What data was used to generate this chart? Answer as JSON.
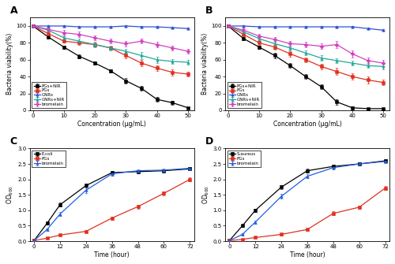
{
  "panel_A": {
    "title": "A",
    "xlabel": "Concentration (μg/mL)",
    "ylabel": "Bacteria viability(%)",
    "xdata": [
      0,
      5,
      10,
      15,
      20,
      25,
      30,
      35,
      40,
      45,
      50
    ],
    "series": {
      "PGs+NIR": {
        "color": "black",
        "marker": "s",
        "y": [
          100,
          87,
          75,
          64,
          56,
          47,
          35,
          26,
          13,
          9,
          3
        ],
        "yerr": [
          1,
          2,
          2,
          2,
          2,
          2,
          3,
          3,
          3,
          2,
          1
        ]
      },
      "PGs": {
        "color": "#e03020",
        "marker": "s",
        "y": [
          100,
          91,
          82,
          80,
          78,
          74,
          65,
          56,
          50,
          45,
          43
        ],
        "yerr": [
          1,
          2,
          2,
          2,
          2,
          2,
          3,
          4,
          3,
          4,
          3
        ]
      },
      "GNRs": {
        "color": "#3050d0",
        "marker": "^",
        "y": [
          100,
          100,
          100,
          99,
          99,
          99,
          100,
          99,
          99,
          98,
          97
        ],
        "yerr": [
          1,
          1,
          1,
          1,
          1,
          1,
          1,
          1,
          1,
          1,
          1
        ]
      },
      "GNRs+NIR": {
        "color": "#20a898",
        "marker": "^",
        "y": [
          100,
          95,
          86,
          82,
          78,
          74,
          70,
          65,
          60,
          58,
          57
        ],
        "yerr": [
          1,
          2,
          2,
          3,
          3,
          3,
          3,
          4,
          4,
          3,
          3
        ]
      },
      "bromelain": {
        "color": "#d040c0",
        "marker": "D",
        "y": [
          100,
          96,
          92,
          90,
          86,
          82,
          79,
          82,
          78,
          74,
          70
        ],
        "yerr": [
          1,
          2,
          3,
          3,
          3,
          3,
          3,
          3,
          3,
          3,
          3
        ]
      }
    },
    "xlim": [
      -1,
      52
    ],
    "ylim": [
      0,
      110
    ],
    "xticks": [
      0,
      10,
      20,
      30,
      40,
      50
    ],
    "yticks": [
      0,
      20,
      40,
      60,
      80,
      100
    ],
    "legend_loc": "lower left"
  },
  "panel_B": {
    "title": "B",
    "xlabel": "Concentration (μg/mL)",
    "ylabel": "Bacteria viability(%)",
    "xdata": [
      0,
      5,
      10,
      15,
      20,
      25,
      30,
      35,
      40,
      45,
      50
    ],
    "series": {
      "PGs+NIR": {
        "color": "black",
        "marker": "s",
        "y": [
          100,
          85,
          75,
          65,
          53,
          40,
          28,
          10,
          3,
          2,
          2
        ],
        "yerr": [
          1,
          2,
          2,
          3,
          3,
          3,
          3,
          3,
          2,
          1,
          1
        ]
      },
      "PGs": {
        "color": "#e03020",
        "marker": "s",
        "y": [
          100,
          90,
          80,
          75,
          67,
          60,
          52,
          46,
          40,
          36,
          33
        ],
        "yerr": [
          1,
          2,
          2,
          3,
          3,
          3,
          3,
          4,
          4,
          4,
          3
        ]
      },
      "GNRs": {
        "color": "#3050d0",
        "marker": "^",
        "y": [
          100,
          100,
          99,
          99,
          99,
          99,
          99,
          99,
          99,
          97,
          95
        ],
        "yerr": [
          1,
          1,
          1,
          1,
          1,
          1,
          1,
          1,
          1,
          1,
          1
        ]
      },
      "GNRs+NIR": {
        "color": "#20a898",
        "marker": "^",
        "y": [
          100,
          93,
          85,
          79,
          74,
          68,
          62,
          59,
          56,
          53,
          52
        ],
        "yerr": [
          1,
          2,
          2,
          3,
          3,
          3,
          3,
          3,
          3,
          3,
          3
        ]
      },
      "bromelain": {
        "color": "#d040c0",
        "marker": "D",
        "y": [
          100,
          95,
          88,
          84,
          79,
          78,
          76,
          78,
          67,
          59,
          56
        ],
        "yerr": [
          1,
          2,
          3,
          3,
          3,
          3,
          3,
          4,
          4,
          4,
          4
        ]
      }
    },
    "xlim": [
      -1,
      52
    ],
    "ylim": [
      0,
      110
    ],
    "xticks": [
      0,
      10,
      20,
      30,
      40,
      50
    ],
    "yticks": [
      0,
      20,
      40,
      60,
      80,
      100
    ],
    "legend_loc": "lower left"
  },
  "panel_C": {
    "title": "C",
    "xlabel": "Time (hour)",
    "ylabel": "OD600",
    "xdata": [
      0,
      6,
      12,
      24,
      36,
      48,
      60,
      72
    ],
    "series": {
      "E.coli": {
        "color": "black",
        "marker": "s",
        "y": [
          0.02,
          0.58,
          1.18,
          1.8,
          2.22,
          2.25,
          2.28,
          2.34
        ],
        "yerr": [
          0.01,
          0.04,
          0.06,
          0.07,
          0.05,
          0.05,
          0.04,
          0.05
        ]
      },
      "PGs": {
        "color": "#e03020",
        "marker": "s",
        "y": [
          0.02,
          0.1,
          0.2,
          0.32,
          0.75,
          1.12,
          1.55,
          2.0
        ],
        "yerr": [
          0.01,
          0.02,
          0.03,
          0.04,
          0.05,
          0.06,
          0.06,
          0.07
        ]
      },
      "bromelain": {
        "color": "#2060e0",
        "marker": "^",
        "y": [
          0.02,
          0.38,
          0.88,
          1.65,
          2.18,
          2.28,
          2.3,
          2.36
        ],
        "yerr": [
          0.01,
          0.04,
          0.06,
          0.08,
          0.05,
          0.04,
          0.04,
          0.05
        ]
      }
    },
    "xlim": [
      -2,
      74
    ],
    "ylim": [
      0,
      3.0
    ],
    "xticks": [
      0,
      12,
      24,
      36,
      48,
      60,
      72
    ],
    "yticks": [
      0.0,
      0.5,
      1.0,
      1.5,
      2.0,
      2.5,
      3.0
    ],
    "legend_loc": "upper left"
  },
  "panel_D": {
    "title": "D",
    "xlabel": "Time (hour)",
    "ylabel": "OD600",
    "xdata": [
      0,
      6,
      12,
      24,
      36,
      48,
      60,
      72
    ],
    "series": {
      "S.aureus": {
        "color": "black",
        "marker": "s",
        "y": [
          0.02,
          0.5,
          1.0,
          1.75,
          2.28,
          2.42,
          2.5,
          2.6
        ],
        "yerr": [
          0.01,
          0.04,
          0.05,
          0.06,
          0.06,
          0.05,
          0.05,
          0.05
        ]
      },
      "PGs": {
        "color": "#e03020",
        "marker": "s",
        "y": [
          0.02,
          0.06,
          0.12,
          0.22,
          0.38,
          0.9,
          1.1,
          1.72
        ],
        "yerr": [
          0.01,
          0.02,
          0.02,
          0.03,
          0.04,
          0.06,
          0.06,
          0.07
        ]
      },
      "bromelain": {
        "color": "#2060e0",
        "marker": "^",
        "y": [
          0.02,
          0.22,
          0.62,
          1.45,
          2.1,
          2.38,
          2.5,
          2.58
        ],
        "yerr": [
          0.01,
          0.03,
          0.05,
          0.08,
          0.07,
          0.06,
          0.05,
          0.05
        ]
      }
    },
    "xlim": [
      -2,
      74
    ],
    "ylim": [
      0,
      3.0
    ],
    "xticks": [
      0,
      12,
      24,
      36,
      48,
      60,
      72
    ],
    "yticks": [
      0.0,
      0.5,
      1.0,
      1.5,
      2.0,
      2.5,
      3.0
    ],
    "legend_loc": "upper left"
  },
  "figure_bg": "white",
  "axes_bg": "white"
}
